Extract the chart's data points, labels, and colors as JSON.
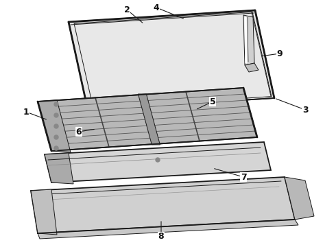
{
  "background_color": "#ffffff",
  "line_color": "#1a1a1a",
  "label_color": "#111111",
  "lw_main": 1.3,
  "lw_thin": 0.7,
  "lw_bold": 2.0
}
